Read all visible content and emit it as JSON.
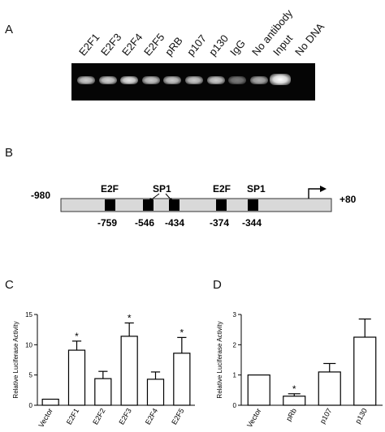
{
  "panels": {
    "a": "A",
    "b": "B",
    "c": "C",
    "d": "D"
  },
  "gel": {
    "lanes": [
      "E2F1",
      "E2F3",
      "E2F4",
      "E2F5",
      "pRB",
      "p107",
      "p130",
      "IgG",
      "No antibody",
      "Input",
      "No DNA"
    ],
    "band_intensity": [
      0.72,
      0.75,
      0.85,
      0.7,
      0.7,
      0.7,
      0.72,
      0.25,
      0.55,
      1.0,
      0.0
    ]
  },
  "promoter": {
    "start_label": "-980",
    "end_label": "+80",
    "sites_top": [
      "E2F",
      "SP1",
      "E2F",
      "SP1"
    ],
    "positions": [
      "-759",
      "-546",
      "-434",
      "-374",
      "-344"
    ]
  },
  "chart_data": [
    {
      "type": "bar",
      "title": "",
      "ylabel": "Relative Luciferase Activity",
      "categories": [
        "Vector",
        "E2F1",
        "E2F2",
        "E2F3",
        "E2F4",
        "E2F5"
      ],
      "values": [
        1.0,
        9.1,
        4.4,
        11.4,
        4.3,
        8.6
      ],
      "errors": [
        0,
        1.5,
        1.2,
        2.2,
        1.2,
        2.6
      ],
      "significant": [
        false,
        true,
        false,
        true,
        false,
        true
      ],
      "ylim": [
        0,
        15
      ],
      "yticks": [
        "0",
        "5",
        "10",
        "15"
      ],
      "marker": "*"
    },
    {
      "type": "bar",
      "title": "",
      "ylabel": "Relative Luciferase Activity",
      "categories": [
        "Vector",
        "pRb",
        "p107",
        "p130"
      ],
      "values": [
        1.0,
        0.3,
        1.1,
        2.25
      ],
      "errors": [
        0,
        0.08,
        0.28,
        0.6
      ],
      "significant": [
        false,
        true,
        false,
        false
      ],
      "ylim": [
        0,
        3
      ],
      "yticks": [
        "0",
        "1",
        "2",
        "3"
      ],
      "marker": "*"
    }
  ]
}
